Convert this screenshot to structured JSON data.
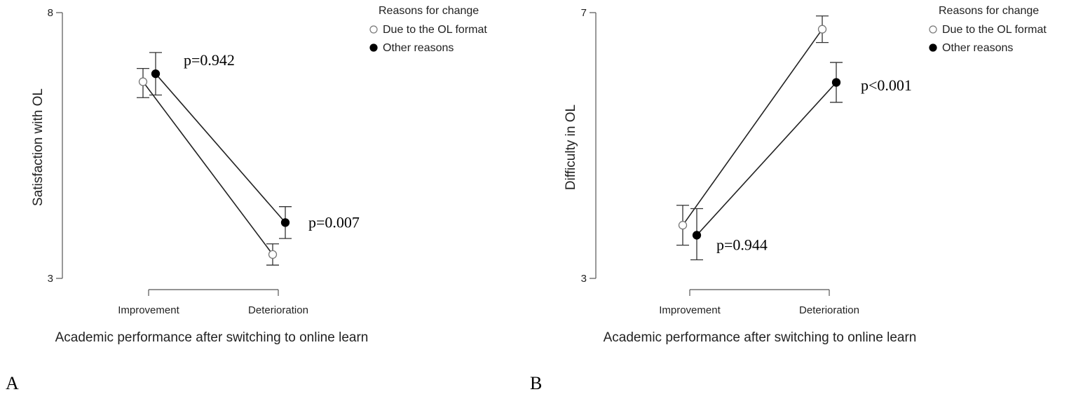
{
  "figure": {
    "panel_labels": [
      "A",
      "B"
    ]
  },
  "chart_data": [
    {
      "type": "line",
      "panel": "A",
      "categories": [
        "Improvement",
        "Deterioration"
      ],
      "ylabel": "Satisfaction with OL",
      "xlabel": "Academic performance after switching to online learn",
      "ylim": [
        3,
        8
      ],
      "yticks": [
        "3",
        "8"
      ],
      "legend": {
        "title": "Reasons for change",
        "placement": "top-right"
      },
      "series": [
        {
          "name": "Due to the OL format",
          "marker": "open-circle",
          "values": [
            6.7,
            3.45
          ],
          "err_low": [
            6.4,
            3.25
          ],
          "err_high": [
            6.95,
            3.65
          ]
        },
        {
          "name": "Other reasons",
          "marker": "filled-circle",
          "values": [
            6.85,
            4.05
          ],
          "err_low": [
            6.45,
            3.75
          ],
          "err_high": [
            7.25,
            4.35
          ]
        }
      ],
      "annotations": [
        {
          "text": "p=0.942",
          "category": "Improvement",
          "y": 7.1
        },
        {
          "text": "p=0.007",
          "category": "Deterioration",
          "y": 4.05
        }
      ]
    },
    {
      "type": "line",
      "panel": "B",
      "categories": [
        "Improvement",
        "Deterioration"
      ],
      "ylabel": "Difficulty in OL",
      "xlabel": "Academic performance after switching to online learn",
      "ylim": [
        3,
        7
      ],
      "yticks": [
        "3",
        "7"
      ],
      "legend": {
        "title": "Reasons for change",
        "placement": "top-right"
      },
      "series": [
        {
          "name": "Due to the OL format",
          "marker": "open-circle",
          "values": [
            3.8,
            6.75
          ],
          "err_low": [
            3.5,
            6.55
          ],
          "err_high": [
            4.1,
            6.95
          ]
        },
        {
          "name": "Other reasons",
          "marker": "filled-circle",
          "values": [
            3.65,
            5.95
          ],
          "err_low": [
            3.28,
            5.65
          ],
          "err_high": [
            4.05,
            6.25
          ]
        }
      ],
      "annotations": [
        {
          "text": "p=0.944",
          "category": "Improvement",
          "y": 3.5
        },
        {
          "text": "p<0.001",
          "category": "Deterioration",
          "y": 5.9
        }
      ]
    }
  ]
}
